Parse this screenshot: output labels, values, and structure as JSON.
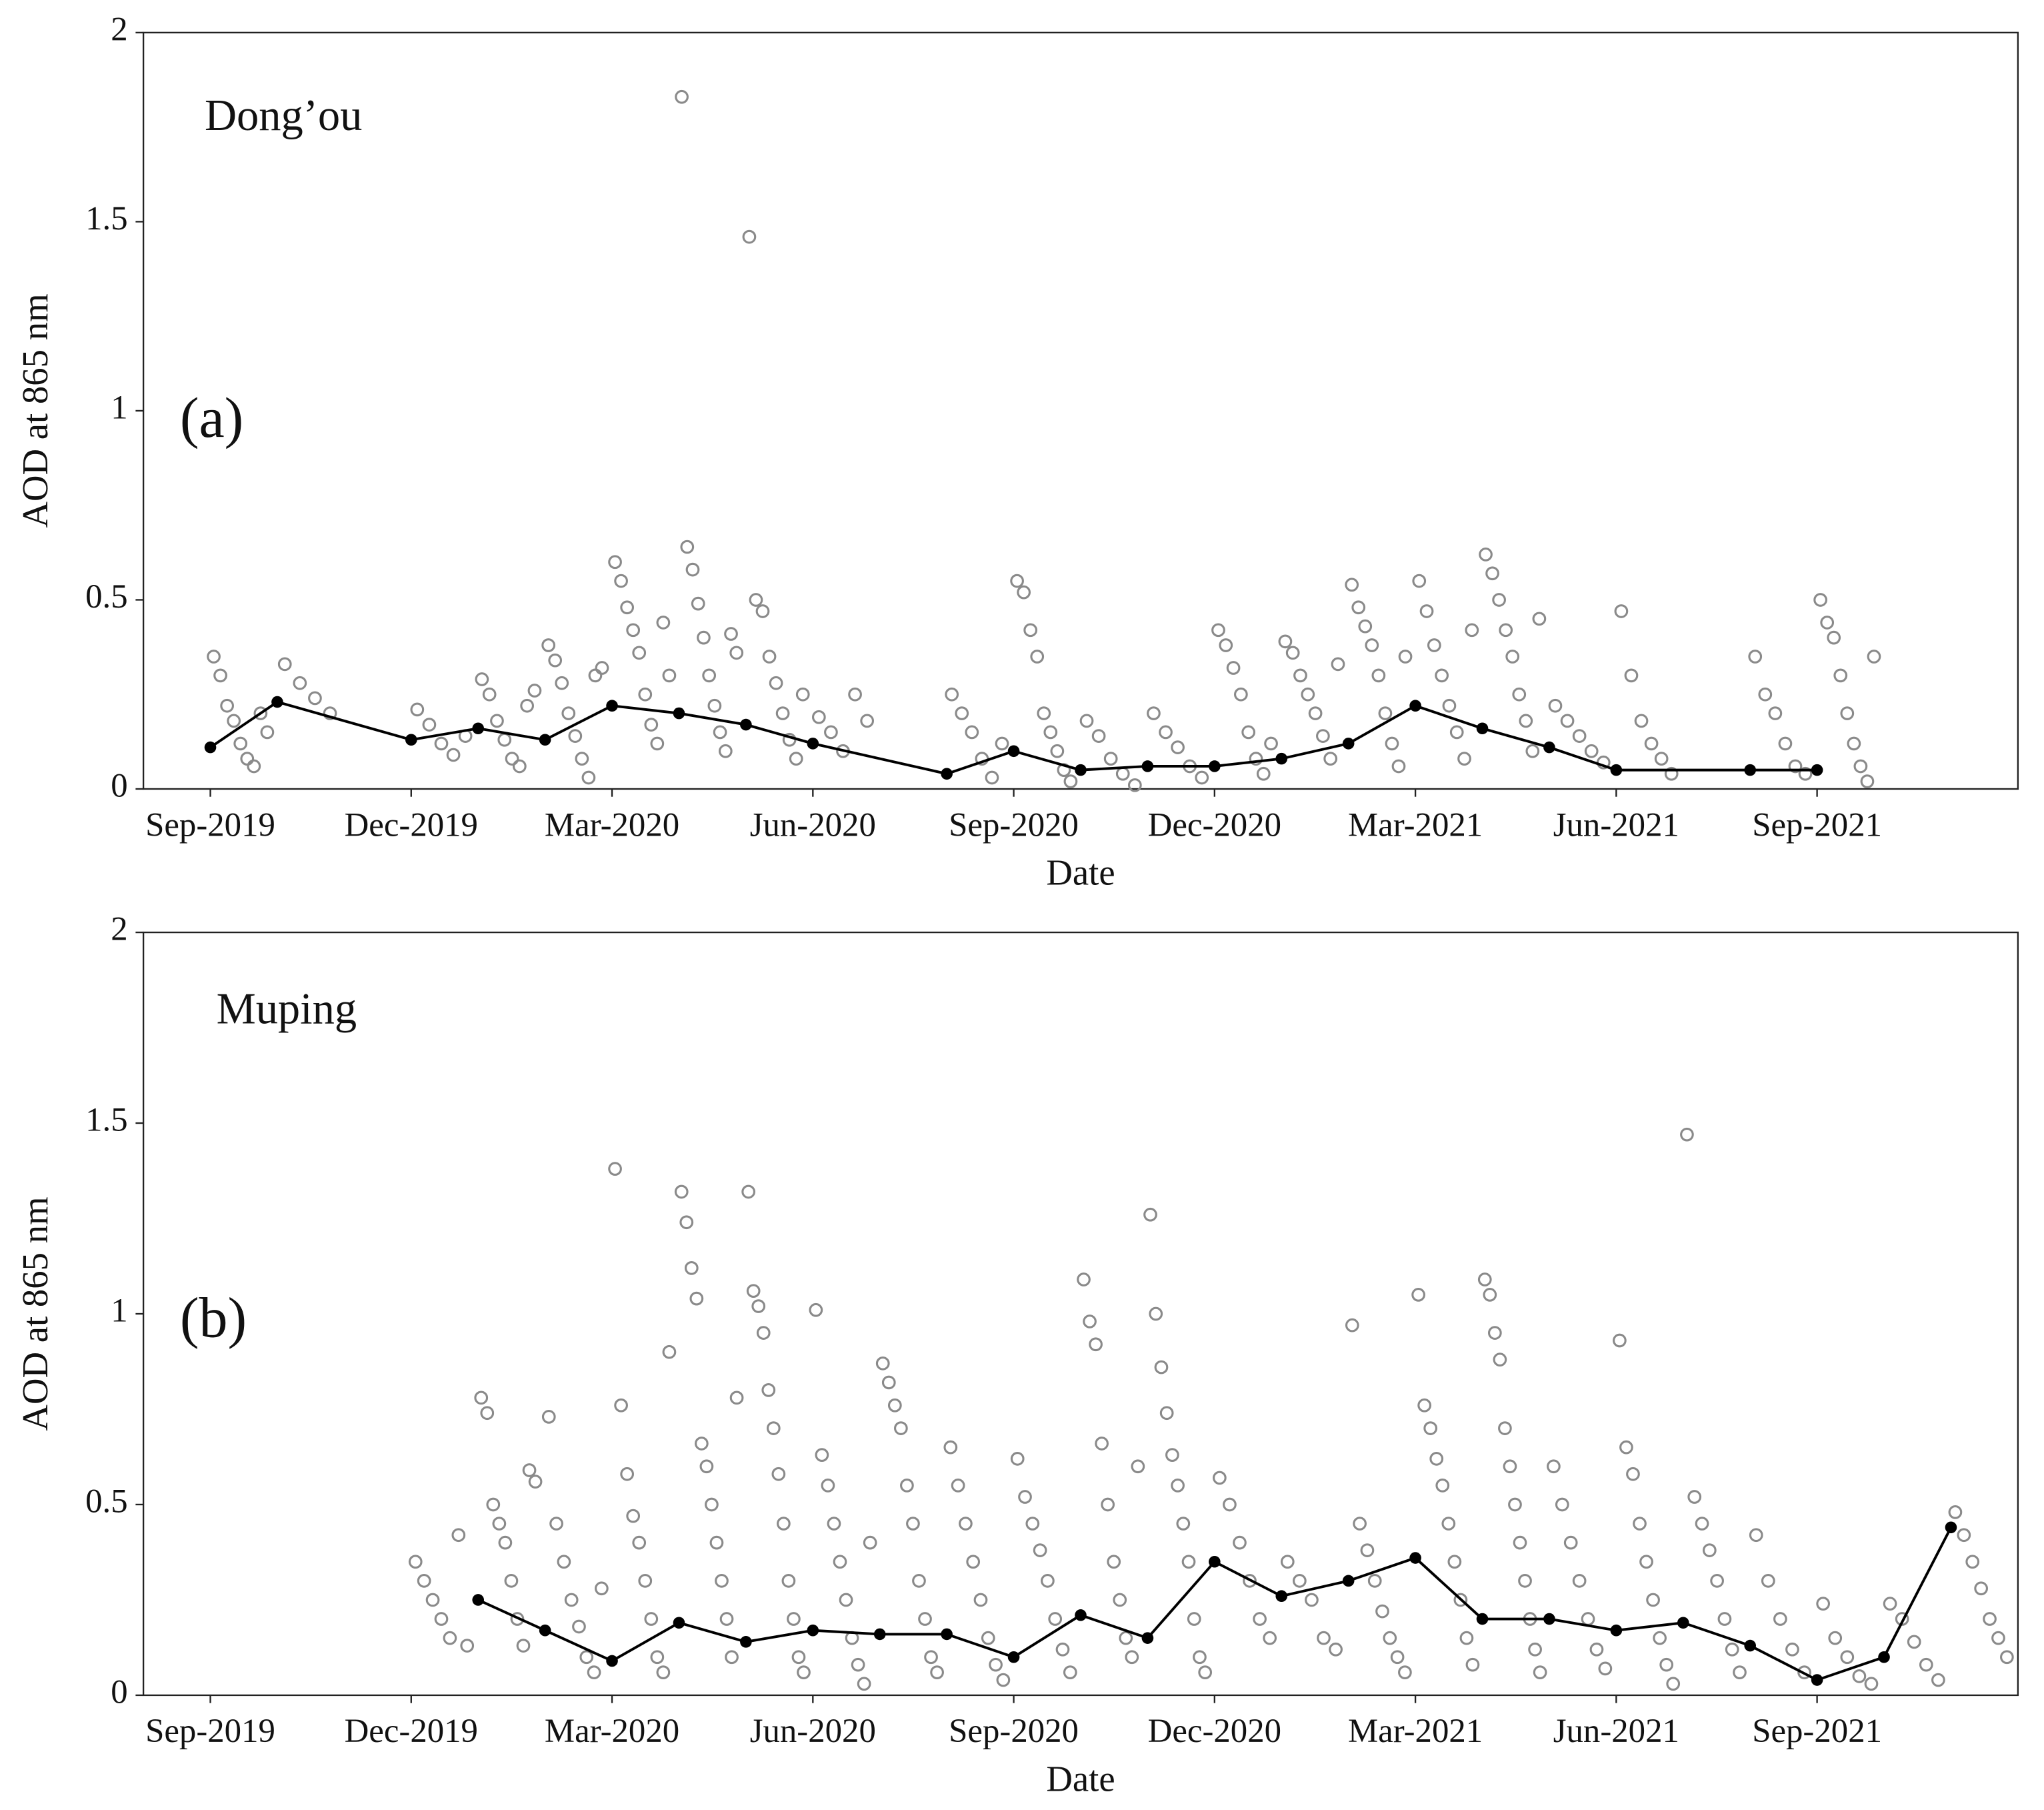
{
  "chart_data": [
    {
      "type": "scatter",
      "site": "Dong’ou",
      "panel": "(a)",
      "xlabel": "Date",
      "ylabel": "AOD at 865 nm",
      "xlim": [
        "2019-08",
        "2021-12"
      ],
      "xticks": [
        {
          "value": "2019-09",
          "label": "Sep-2019"
        },
        {
          "value": "2019-12",
          "label": "Dec-2019"
        },
        {
          "value": "2020-03",
          "label": "Mar-2020"
        },
        {
          "value": "2020-06",
          "label": "Jun-2020"
        },
        {
          "value": "2020-09",
          "label": "Sep-2020"
        },
        {
          "value": "2020-12",
          "label": "Dec-2020"
        },
        {
          "value": "2021-03",
          "label": "Mar-2021"
        },
        {
          "value": "2021-06",
          "label": "Jun-2021"
        },
        {
          "value": "2021-09",
          "label": "Sep-2021"
        }
      ],
      "ylim": [
        0,
        2
      ],
      "yticks": [
        0,
        0.5,
        1,
        1.5,
        2
      ],
      "point_color": "#8a8a8a",
      "line_color": "#000000",
      "scatter": [
        {
          "x": "2019-09",
          "values": [
            0.35,
            0.3,
            0.22,
            0.18,
            0.12,
            0.08,
            0.06,
            0.2,
            0.15
          ]
        },
        {
          "x": "2019-10",
          "values": [
            0.33,
            0.28,
            0.24,
            0.2
          ]
        },
        {
          "x": "2019-12",
          "values": [
            0.21,
            0.17,
            0.12,
            0.09,
            0.14
          ]
        },
        {
          "x": "2020-01",
          "values": [
            0.29,
            0.25,
            0.18,
            0.13,
            0.08,
            0.06,
            0.22,
            0.26
          ]
        },
        {
          "x": "2020-02",
          "values": [
            0.38,
            0.34,
            0.28,
            0.2,
            0.14,
            0.08,
            0.03,
            0.3,
            0.32
          ]
        },
        {
          "x": "2020-03",
          "values": [
            0.6,
            0.55,
            0.48,
            0.42,
            0.36,
            0.25,
            0.17,
            0.12,
            0.44,
            0.3
          ]
        },
        {
          "x": "2020-04",
          "values": [
            1.83,
            0.64,
            0.58,
            0.49,
            0.4,
            0.3,
            0.22,
            0.15,
            0.1,
            0.41,
            0.36
          ]
        },
        {
          "x": "2020-05",
          "values": [
            1.46,
            0.5,
            0.47,
            0.35,
            0.28,
            0.2,
            0.13,
            0.08,
            0.25
          ]
        },
        {
          "x": "2020-06",
          "values": [
            0.19,
            0.15,
            0.1,
            0.25,
            0.18
          ]
        },
        {
          "x": "2020-08",
          "values": [
            0.25,
            0.2,
            0.15,
            0.08,
            0.03,
            0.12
          ]
        },
        {
          "x": "2020-09",
          "values": [
            0.55,
            0.52,
            0.42,
            0.35,
            0.2,
            0.15,
            0.1,
            0.05,
            0.02
          ]
        },
        {
          "x": "2020-10",
          "values": [
            0.18,
            0.14,
            0.08,
            0.04,
            0.01
          ]
        },
        {
          "x": "2020-11",
          "values": [
            0.2,
            0.15,
            0.11,
            0.06,
            0.03
          ]
        },
        {
          "x": "2020-12",
          "values": [
            0.42,
            0.38,
            0.32,
            0.25,
            0.15,
            0.08,
            0.04,
            0.12
          ]
        },
        {
          "x": "2021-01",
          "values": [
            0.39,
            0.36,
            0.3,
            0.25,
            0.2,
            0.14,
            0.08,
            0.33
          ]
        },
        {
          "x": "2021-02",
          "values": [
            0.54,
            0.48,
            0.43,
            0.38,
            0.3,
            0.2,
            0.12,
            0.06,
            0.35
          ]
        },
        {
          "x": "2021-03",
          "values": [
            0.55,
            0.47,
            0.38,
            0.3,
            0.22,
            0.15,
            0.08,
            0.42
          ]
        },
        {
          "x": "2021-04",
          "values": [
            0.62,
            0.57,
            0.5,
            0.42,
            0.35,
            0.25,
            0.18,
            0.1,
            0.45
          ]
        },
        {
          "x": "2021-05",
          "values": [
            0.22,
            0.18,
            0.14,
            0.1,
            0.07
          ]
        },
        {
          "x": "2021-06",
          "values": [
            0.47,
            0.3,
            0.18,
            0.12,
            0.08,
            0.04
          ]
        },
        {
          "x": "2021-08",
          "values": [
            0.35,
            0.25,
            0.2,
            0.12,
            0.06,
            0.04
          ]
        },
        {
          "x": "2021-09",
          "values": [
            0.5,
            0.44,
            0.4,
            0.3,
            0.2,
            0.12,
            0.06,
            0.02,
            0.35
          ]
        }
      ],
      "mean": {
        "x": [
          "2019-09",
          "2019-10",
          "2019-12",
          "2020-01",
          "2020-02",
          "2020-03",
          "2020-04",
          "2020-05",
          "2020-06",
          "2020-08",
          "2020-09",
          "2020-10",
          "2020-11",
          "2020-12",
          "2021-01",
          "2021-02",
          "2021-03",
          "2021-04",
          "2021-05",
          "2021-06",
          "2021-08",
          "2021-09"
        ],
        "values": [
          0.11,
          0.23,
          0.13,
          0.16,
          0.13,
          0.22,
          0.2,
          0.17,
          0.12,
          0.04,
          0.1,
          0.05,
          0.06,
          0.06,
          0.08,
          0.12,
          0.22,
          0.16,
          0.11,
          0.05,
          0.05,
          0.05
        ]
      }
    },
    {
      "type": "scatter",
      "site": "Muping",
      "panel": "(b)",
      "xlabel": "Date",
      "ylabel": "AOD at 865 nm",
      "xlim": [
        "2019-08",
        "2021-12"
      ],
      "xticks": [
        {
          "value": "2019-09",
          "label": "Sep-2019"
        },
        {
          "value": "2019-12",
          "label": "Dec-2019"
        },
        {
          "value": "2020-03",
          "label": "Mar-2020"
        },
        {
          "value": "2020-06",
          "label": "Jun-2020"
        },
        {
          "value": "2020-09",
          "label": "Sep-2020"
        },
        {
          "value": "2020-12",
          "label": "Dec-2020"
        },
        {
          "value": "2021-03",
          "label": "Mar-2021"
        },
        {
          "value": "2021-06",
          "label": "Jun-2021"
        },
        {
          "value": "2021-09",
          "label": "Sep-2021"
        }
      ],
      "ylim": [
        0,
        2
      ],
      "yticks": [
        0,
        0.5,
        1,
        1.5,
        2
      ],
      "point_color": "#8a8a8a",
      "line_color": "#000000",
      "scatter": [
        {
          "x": "2019-12",
          "values": [
            0.35,
            0.3,
            0.25,
            0.2,
            0.15,
            0.42,
            0.13
          ]
        },
        {
          "x": "2020-01",
          "values": [
            0.78,
            0.74,
            0.5,
            0.45,
            0.4,
            0.3,
            0.2,
            0.13,
            0.59,
            0.56
          ]
        },
        {
          "x": "2020-02",
          "values": [
            0.73,
            0.45,
            0.35,
            0.25,
            0.18,
            0.1,
            0.06,
            0.28
          ]
        },
        {
          "x": "2020-03",
          "values": [
            1.38,
            0.76,
            0.58,
            0.47,
            0.4,
            0.3,
            0.2,
            0.1,
            0.06,
            0.9
          ]
        },
        {
          "x": "2020-04",
          "values": [
            1.32,
            1.24,
            1.12,
            1.04,
            0.66,
            0.6,
            0.5,
            0.4,
            0.3,
            0.2,
            0.1,
            0.78
          ]
        },
        {
          "x": "2020-05",
          "values": [
            1.32,
            1.06,
            1.02,
            0.95,
            0.8,
            0.7,
            0.58,
            0.45,
            0.3,
            0.2,
            0.1,
            0.06
          ]
        },
        {
          "x": "2020-06",
          "values": [
            1.01,
            0.63,
            0.55,
            0.45,
            0.35,
            0.25,
            0.15,
            0.08,
            0.03,
            0.4
          ]
        },
        {
          "x": "2020-07",
          "values": [
            0.87,
            0.82,
            0.76,
            0.7,
            0.55,
            0.45,
            0.3,
            0.2,
            0.1,
            0.06
          ]
        },
        {
          "x": "2020-08",
          "values": [
            0.65,
            0.55,
            0.45,
            0.35,
            0.25,
            0.15,
            0.08,
            0.04
          ]
        },
        {
          "x": "2020-09",
          "values": [
            0.62,
            0.52,
            0.45,
            0.38,
            0.3,
            0.2,
            0.12,
            0.06
          ]
        },
        {
          "x": "2020-10",
          "values": [
            1.09,
            0.98,
            0.92,
            0.66,
            0.5,
            0.35,
            0.25,
            0.15,
            0.1,
            0.6
          ]
        },
        {
          "x": "2020-11",
          "values": [
            1.26,
            1.0,
            0.86,
            0.74,
            0.63,
            0.55,
            0.45,
            0.35,
            0.2,
            0.1,
            0.06
          ]
        },
        {
          "x": "2020-12",
          "values": [
            0.57,
            0.5,
            0.4,
            0.3,
            0.2,
            0.15
          ]
        },
        {
          "x": "2021-01",
          "values": [
            0.35,
            0.3,
            0.25,
            0.15,
            0.12
          ]
        },
        {
          "x": "2021-02",
          "values": [
            0.97,
            0.45,
            0.38,
            0.3,
            0.22,
            0.15,
            0.1,
            0.06
          ]
        },
        {
          "x": "2021-03",
          "values": [
            1.05,
            0.76,
            0.7,
            0.62,
            0.55,
            0.45,
            0.35,
            0.25,
            0.15,
            0.08
          ]
        },
        {
          "x": "2021-04",
          "values": [
            1.09,
            1.05,
            0.95,
            0.88,
            0.7,
            0.6,
            0.5,
            0.4,
            0.3,
            0.2,
            0.12,
            0.06
          ]
        },
        {
          "x": "2021-05",
          "values": [
            0.6,
            0.5,
            0.4,
            0.3,
            0.2,
            0.12,
            0.07
          ]
        },
        {
          "x": "2021-06",
          "values": [
            0.93,
            0.65,
            0.58,
            0.45,
            0.35,
            0.25,
            0.15,
            0.08,
            0.03
          ]
        },
        {
          "x": "2021-07",
          "values": [
            1.47,
            0.52,
            0.45,
            0.38,
            0.3,
            0.2,
            0.12,
            0.06
          ]
        },
        {
          "x": "2021-08",
          "values": [
            0.42,
            0.3,
            0.2,
            0.12,
            0.06
          ]
        },
        {
          "x": "2021-09",
          "values": [
            0.24,
            0.15,
            0.1,
            0.05,
            0.03
          ]
        },
        {
          "x": "2021-10",
          "values": [
            0.24,
            0.2,
            0.14,
            0.08,
            0.04
          ]
        },
        {
          "x": "2021-11",
          "values": [
            0.48,
            0.42,
            0.35,
            0.28,
            0.2,
            0.15,
            0.1
          ]
        }
      ],
      "mean": {
        "x": [
          "2020-01",
          "2020-02",
          "2020-03",
          "2020-04",
          "2020-05",
          "2020-06",
          "2020-07",
          "2020-08",
          "2020-09",
          "2020-10",
          "2020-11",
          "2020-12",
          "2021-01",
          "2021-02",
          "2021-03",
          "2021-04",
          "2021-05",
          "2021-06",
          "2021-07",
          "2021-08",
          "2021-09",
          "2021-10",
          "2021-11"
        ],
        "values": [
          0.25,
          0.17,
          0.09,
          0.19,
          0.14,
          0.17,
          0.16,
          0.16,
          0.1,
          0.21,
          0.15,
          0.35,
          0.26,
          0.3,
          0.36,
          0.2,
          0.2,
          0.17,
          0.19,
          0.13,
          0.04,
          0.1,
          0.44
        ]
      }
    }
  ]
}
